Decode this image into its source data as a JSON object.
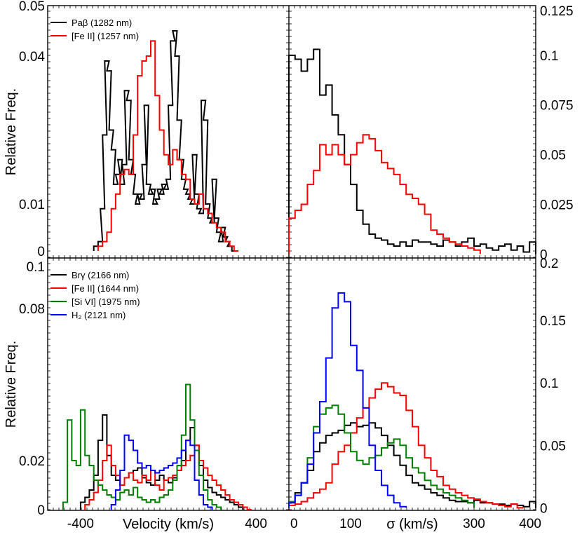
{
  "chart_data": [
    {
      "panel": "top-left",
      "type": "step histogram",
      "xlabel": "",
      "ylabel": "Relative Freq.",
      "xlim": [
        -550,
        550
      ],
      "ylim": [
        -0.001,
        0.051
      ],
      "yscale": "mildly compressed (as drawn)",
      "yticks": [
        "0",
        "0.01",
        "0.04",
        "0.05"
      ],
      "ytick_values": [
        0,
        0.01,
        0.04,
        0.05
      ],
      "legend_position": "top-left",
      "series": [
        {
          "name": "Paβ (1282 nm)",
          "color": "#000000",
          "x": [
            -330,
            -310,
            -300,
            -290,
            -280,
            -270,
            -260,
            -250,
            -240,
            -230,
            -220,
            -210,
            -200,
            -190,
            -180,
            -170,
            -160,
            -150,
            -140,
            -130,
            -120,
            -110,
            -100,
            -90,
            -80,
            -70,
            -60,
            -50,
            -40,
            -30,
            -20,
            -10,
            0,
            10,
            20,
            30,
            40,
            50,
            60,
            70,
            80,
            90,
            100,
            110,
            120,
            130,
            140,
            150,
            160,
            170,
            180,
            190,
            200,
            210,
            220,
            230,
            240,
            250,
            260,
            270,
            280,
            300
          ],
          "y": [
            0.001,
            0.002,
            0.009,
            0.024,
            0.039,
            0.037,
            0.025,
            0.021,
            0.014,
            0.016,
            0.019,
            0.014,
            0.018,
            0.033,
            0.031,
            0.019,
            0.016,
            0.012,
            0.01,
            0.012,
            0.011,
            0.018,
            0.03,
            0.014,
            0.012,
            0.013,
            0.01,
            0.011,
            0.013,
            0.012,
            0.014,
            0.013,
            0.015,
            0.03,
            0.043,
            0.045,
            0.04,
            0.027,
            0.019,
            0.015,
            0.013,
            0.012,
            0.011,
            0.01,
            0.02,
            0.012,
            0.009,
            0.008,
            0.031,
            0.027,
            0.01,
            0.007,
            0.006,
            0.015,
            0.007,
            0.004,
            0.002,
            0.005,
            0.003,
            0.002,
            0.001,
            0
          ]
        },
        {
          "name": "[Fe II] (1257 nm)",
          "color": "#ff0000",
          "x": [
            -310,
            -290,
            -270,
            -250,
            -230,
            -210,
            -190,
            -170,
            -150,
            -130,
            -110,
            -90,
            -70,
            -50,
            -30,
            -10,
            10,
            30,
            50,
            70,
            90,
            110,
            130,
            150,
            170,
            190,
            210,
            230,
            250,
            270,
            290,
            310
          ],
          "y": [
            0.001,
            0.002,
            0.004,
            0.009,
            0.012,
            0.016,
            0.017,
            0.016,
            0.024,
            0.036,
            0.039,
            0.04,
            0.043,
            0.032,
            0.025,
            0.02,
            0.018,
            0.021,
            0.019,
            0.016,
            0.015,
            0.011,
            0.01,
            0.012,
            0.009,
            0.008,
            0.006,
            0.005,
            0.004,
            0.002,
            0.001,
            0
          ]
        }
      ]
    },
    {
      "panel": "top-right",
      "type": "step histogram",
      "xlabel": "",
      "ylabel": "",
      "xlim": [
        0,
        400
      ],
      "ylim": [
        -0.002,
        0.125
      ],
      "yticks": [
        "0",
        "0.025",
        "0.05",
        "0.075",
        "0.1",
        "0.125"
      ],
      "ytick_values": [
        0,
        0.025,
        0.05,
        0.075,
        0.1,
        0.125
      ],
      "series": [
        {
          "name": "Paβ (1282 nm)",
          "color": "#000000",
          "x": [
            5,
            15,
            25,
            35,
            45,
            55,
            65,
            75,
            85,
            95,
            105,
            115,
            125,
            135,
            145,
            155,
            165,
            175,
            185,
            195,
            205,
            215,
            225,
            235,
            245,
            255,
            265,
            275,
            285,
            295,
            305,
            315,
            325,
            335,
            345,
            355,
            365,
            375,
            385,
            395
          ],
          "y": [
            0.1,
            0.098,
            0.092,
            0.098,
            0.103,
            0.08,
            0.085,
            0.07,
            0.06,
            0.045,
            0.035,
            0.022,
            0.015,
            0.01,
            0.008,
            0.007,
            0.005,
            0.004,
            0.006,
            0.004,
            0.007,
            0.006,
            0.006,
            0.005,
            0.004,
            0.007,
            0.006,
            0.004,
            0.006,
            0.008,
            0.004,
            0.005,
            0.003,
            0.002,
            0.004,
            0.005,
            0.002,
            0.004,
            0.001,
            0.006
          ]
        },
        {
          "name": "[Fe II] (1257 nm)",
          "color": "#ff0000",
          "x": [
            5,
            15,
            25,
            35,
            45,
            55,
            65,
            75,
            85,
            95,
            105,
            115,
            125,
            135,
            145,
            155,
            165,
            175,
            185,
            195,
            205,
            215,
            225,
            235,
            245,
            255,
            265,
            275,
            285,
            295,
            305
          ],
          "y": [
            0.018,
            0.022,
            0.025,
            0.035,
            0.042,
            0.055,
            0.05,
            0.055,
            0.05,
            0.045,
            0.05,
            0.056,
            0.06,
            0.058,
            0.052,
            0.046,
            0.043,
            0.04,
            0.035,
            0.03,
            0.028,
            0.025,
            0.02,
            0.012,
            0.01,
            0.008,
            0.006,
            0.005,
            0.004,
            0.003,
            0.002
          ]
        }
      ]
    },
    {
      "panel": "bottom-left",
      "type": "step histogram",
      "xlabel": "Velocity (km/s)",
      "ylabel": "Relative Freq.",
      "xlim": [
        -550,
        550
      ],
      "ylim": [
        -0.001,
        0.101
      ],
      "yscale": "mildly compressed (as drawn)",
      "xticks": [
        "-400",
        "400"
      ],
      "xtick_values": [
        -400,
        400
      ],
      "yticks": [
        "0",
        "0.02",
        "0.08",
        "0.1"
      ],
      "ytick_values": [
        0,
        0.02,
        0.08,
        0.1
      ],
      "legend_position": "top-left",
      "series": [
        {
          "name": "Brγ (2166 nm)",
          "color": "#000000",
          "x": [
            -390,
            -370,
            -350,
            -330,
            -310,
            -290,
            -270,
            -250,
            -230,
            -210,
            -190,
            -170,
            -150,
            -130,
            -110,
            -90,
            -70,
            -50,
            -30,
            -10,
            10,
            30,
            50,
            70,
            90,
            110,
            130,
            150,
            170,
            190,
            210,
            230,
            250,
            270,
            290,
            310,
            330
          ],
          "y": [
            0.003,
            0.005,
            0.008,
            0.014,
            0.028,
            0.038,
            0.022,
            0.014,
            0.012,
            0.01,
            0.013,
            0.015,
            0.016,
            0.017,
            0.013,
            0.011,
            0.01,
            0.012,
            0.014,
            0.012,
            0.011,
            0.013,
            0.016,
            0.02,
            0.028,
            0.033,
            0.026,
            0.018,
            0.012,
            0.009,
            0.007,
            0.006,
            0.005,
            0.004,
            0.003,
            0.002,
            0.001
          ]
        },
        {
          "name": "[Fe II] (1644 nm)",
          "color": "#ff0000",
          "x": [
            -370,
            -350,
            -330,
            -310,
            -290,
            -270,
            -250,
            -230,
            -210,
            -190,
            -170,
            -150,
            -130,
            -110,
            -90,
            -70,
            -50,
            -30,
            -10,
            10,
            30,
            50,
            70,
            90,
            110,
            130,
            150,
            170,
            190,
            210,
            230,
            250,
            270,
            290,
            310,
            330,
            350,
            370
          ],
          "y": [
            0.002,
            0.004,
            0.007,
            0.012,
            0.02,
            0.026,
            0.018,
            0.014,
            0.01,
            0.013,
            0.015,
            0.012,
            0.011,
            0.014,
            0.012,
            0.016,
            0.01,
            0.008,
            0.012,
            0.013,
            0.014,
            0.016,
            0.018,
            0.02,
            0.022,
            0.026,
            0.02,
            0.017,
            0.014,
            0.012,
            0.01,
            0.008,
            0.006,
            0.004,
            0.003,
            0.002,
            0.001,
            0
          ]
        },
        {
          "name": "[Si VI] (1975 nm)",
          "color": "#008000",
          "x": [
            -470,
            -450,
            -430,
            -410,
            -390,
            -370,
            -350,
            -330,
            -310,
            -290,
            -270,
            -250,
            -230,
            -210,
            -190,
            -170,
            -150,
            -130,
            -110,
            -90,
            -70,
            -50,
            -30,
            -10,
            10,
            30,
            50,
            70,
            90,
            110,
            130,
            150,
            170,
            190,
            210,
            230
          ],
          "y": [
            0.003,
            0.036,
            0.02,
            0.018,
            0.04,
            0.022,
            0.018,
            0.012,
            0.01,
            0.008,
            0.006,
            0.005,
            0.004,
            0.007,
            0.008,
            0.006,
            0.009,
            0.005,
            0.004,
            0.003,
            0.004,
            0.003,
            0.005,
            0.006,
            0.008,
            0.012,
            0.018,
            0.03,
            0.05,
            0.036,
            0.024,
            0.014,
            0.008,
            0.004,
            0.002,
            0.001
          ]
        },
        {
          "name": "H₂ (2121 nm)",
          "color": "#0000ff",
          "x": [
            -250,
            -230,
            -210,
            -190,
            -170,
            -150,
            -130,
            -110,
            -90,
            -70,
            -50,
            -30,
            -10,
            10,
            30,
            50,
            70,
            90,
            110,
            130,
            150,
            170,
            190
          ],
          "y": [
            0.002,
            0.008,
            0.016,
            0.03,
            0.028,
            0.024,
            0.019,
            0.017,
            0.018,
            0.016,
            0.015,
            0.016,
            0.017,
            0.018,
            0.019,
            0.021,
            0.024,
            0.028,
            0.026,
            0.012,
            0.006,
            0.002,
            0.001
          ]
        }
      ]
    },
    {
      "panel": "bottom-right",
      "type": "step histogram",
      "xlabel": "σ (km/s)",
      "ylabel": "",
      "xlim": [
        0,
        400
      ],
      "ylim": [
        -0.002,
        0.2
      ],
      "xticks": [
        "0",
        "100",
        "300",
        "400"
      ],
      "xtick_values": [
        0,
        100,
        300,
        400
      ],
      "yticks": [
        "0",
        "0.05",
        "0.1",
        "0.15",
        "0.2"
      ],
      "ytick_values": [
        0,
        0.05,
        0.1,
        0.15,
        0.2
      ],
      "series": [
        {
          "name": "Brγ (2166 nm)",
          "color": "#000000",
          "x": [
            5,
            15,
            25,
            35,
            45,
            55,
            65,
            75,
            85,
            95,
            105,
            115,
            125,
            135,
            145,
            155,
            165,
            175,
            185,
            195,
            205,
            215,
            225,
            235,
            245,
            255,
            265,
            275,
            285,
            295,
            305,
            315,
            325,
            335,
            345,
            355,
            365,
            375,
            385,
            395
          ],
          "y": [
            0.005,
            0.012,
            0.02,
            0.03,
            0.045,
            0.052,
            0.058,
            0.06,
            0.062,
            0.066,
            0.068,
            0.065,
            0.066,
            0.068,
            0.064,
            0.058,
            0.05,
            0.042,
            0.034,
            0.026,
            0.02,
            0.018,
            0.015,
            0.012,
            0.01,
            0.008,
            0.006,
            0.005,
            0.005,
            0.004,
            0.006,
            0.004,
            0.004,
            0.003,
            0.003,
            0.002,
            0.003,
            0.002,
            0.001,
            0.005
          ]
        },
        {
          "name": "[Fe II] (1644 nm)",
          "color": "#ff0000",
          "x": [
            5,
            15,
            25,
            35,
            45,
            55,
            65,
            75,
            85,
            95,
            105,
            115,
            125,
            135,
            145,
            155,
            165,
            175,
            185,
            195,
            205,
            215,
            225,
            235,
            245,
            255,
            265,
            275,
            285,
            295,
            305,
            315,
            325,
            335,
            345,
            355,
            365,
            375
          ],
          "y": [
            0.002,
            0.003,
            0.005,
            0.008,
            0.012,
            0.015,
            0.02,
            0.035,
            0.045,
            0.05,
            0.06,
            0.072,
            0.08,
            0.088,
            0.095,
            0.1,
            0.097,
            0.092,
            0.09,
            0.078,
            0.065,
            0.05,
            0.04,
            0.03,
            0.025,
            0.018,
            0.015,
            0.012,
            0.01,
            0.008,
            0.007,
            0.005,
            0.004,
            0.003,
            0.002,
            0.001,
            0.003,
            0
          ]
        },
        {
          "name": "[Si VI] (1975 nm)",
          "color": "#008000",
          "x": [
            5,
            15,
            25,
            35,
            45,
            55,
            65,
            75,
            85,
            95,
            105,
            115,
            125,
            135,
            145,
            155,
            165,
            175,
            185,
            195,
            205,
            215,
            225,
            235,
            245,
            255,
            265,
            275,
            285,
            295
          ],
          "y": [
            0.005,
            0.01,
            0.02,
            0.04,
            0.065,
            0.075,
            0.08,
            0.082,
            0.075,
            0.06,
            0.045,
            0.038,
            0.035,
            0.04,
            0.042,
            0.048,
            0.052,
            0.055,
            0.05,
            0.04,
            0.032,
            0.028,
            0.022,
            0.018,
            0.015,
            0.012,
            0.01,
            0.008,
            0.006,
            0.004
          ]
        },
        {
          "name": "H₂ (2121 nm)",
          "color": "#0000ff",
          "x": [
            5,
            15,
            25,
            35,
            45,
            55,
            65,
            75,
            85,
            95,
            105,
            115,
            125,
            135,
            145,
            155,
            165,
            175,
            185
          ],
          "y": [
            0.004,
            0.01,
            0.02,
            0.035,
            0.06,
            0.085,
            0.12,
            0.16,
            0.172,
            0.165,
            0.13,
            0.11,
            0.08,
            0.05,
            0.03,
            0.018,
            0.01,
            0.004,
            0.001
          ]
        }
      ]
    }
  ]
}
